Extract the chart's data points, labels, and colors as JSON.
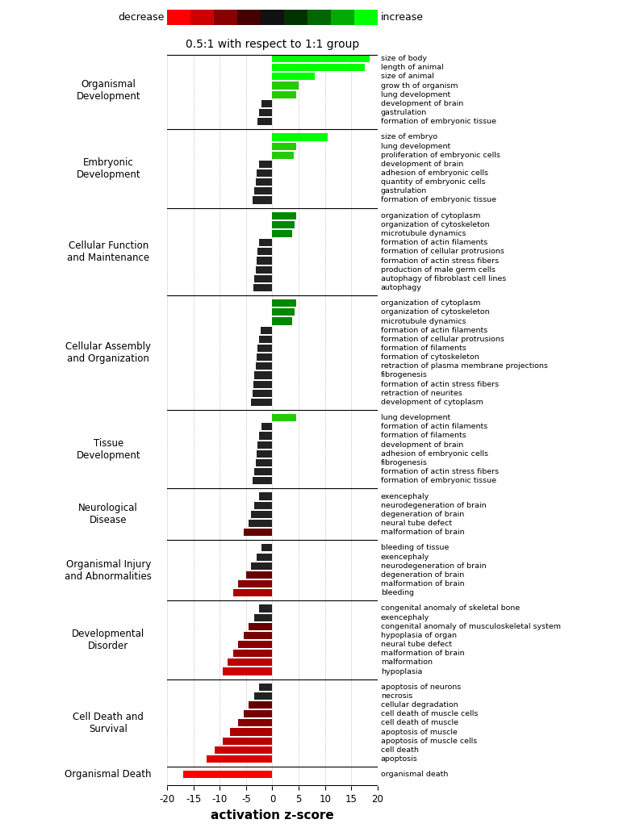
{
  "title": "0.5:1 with respect to 1:1 group",
  "xlabel": "activation z-score",
  "xlim": [
    -20,
    20
  ],
  "xticks": [
    -20,
    -15,
    -10,
    -5,
    0,
    5,
    10,
    15,
    20
  ],
  "groups": [
    {
      "name": "Organismal\nDevelopment",
      "bars": [
        {
          "label": "size of body",
          "value": 18.5,
          "color": "#00ff00"
        },
        {
          "label": "length of animal",
          "value": 17.5,
          "color": "#00ff00"
        },
        {
          "label": "size of animal",
          "value": 8.0,
          "color": "#00ff00"
        },
        {
          "label": "grow th of organism",
          "value": 5.0,
          "color": "#22cc00"
        },
        {
          "label": "lung development",
          "value": 4.5,
          "color": "#22cc00"
        },
        {
          "label": "development of brain",
          "value": -2.0,
          "color": "#222222"
        },
        {
          "label": "gastrulation",
          "value": -2.5,
          "color": "#222222"
        },
        {
          "label": "formation of embryonic tissue",
          "value": -2.8,
          "color": "#222222"
        }
      ]
    },
    {
      "name": "Embryonic\nDevelopment",
      "bars": [
        {
          "label": "size of embryo",
          "value": 10.5,
          "color": "#00ff00"
        },
        {
          "label": "lung development",
          "value": 4.5,
          "color": "#22cc00"
        },
        {
          "label": "proliferation of embryonic cells",
          "value": 4.0,
          "color": "#22cc00"
        },
        {
          "label": "development of brain",
          "value": -2.5,
          "color": "#222222"
        },
        {
          "label": "adhesion of embryonic cells",
          "value": -3.0,
          "color": "#222222"
        },
        {
          "label": "quantity of embryonic cells",
          "value": -3.2,
          "color": "#222222"
        },
        {
          "label": "gastrulation",
          "value": -3.5,
          "color": "#222222"
        },
        {
          "label": "formation of embryonic tissue",
          "value": -3.8,
          "color": "#222222"
        }
      ]
    },
    {
      "name": "Cellular Function\nand Maintenance",
      "bars": [
        {
          "label": "organization of cytoplasm",
          "value": 4.5,
          "color": "#008800"
        },
        {
          "label": "organization of cytoskeleton",
          "value": 4.2,
          "color": "#008800"
        },
        {
          "label": "microtubule dynamics",
          "value": 3.8,
          "color": "#008800"
        },
        {
          "label": "formation of actin filaments",
          "value": -2.5,
          "color": "#222222"
        },
        {
          "label": "formation of cellular protrusions",
          "value": -2.8,
          "color": "#222222"
        },
        {
          "label": "formation of actin stress fibers",
          "value": -3.0,
          "color": "#222222"
        },
        {
          "label": "production of male germ cells",
          "value": -3.2,
          "color": "#222222"
        },
        {
          "label": "autophagy of fibroblast cell lines",
          "value": -3.4,
          "color": "#222222"
        },
        {
          "label": "autophagy",
          "value": -3.6,
          "color": "#222222"
        }
      ]
    },
    {
      "name": "Cellular Assembly\nand Organization",
      "bars": [
        {
          "label": "organization of cytoplasm",
          "value": 4.5,
          "color": "#008800"
        },
        {
          "label": "organization of cytoskeleton",
          "value": 4.2,
          "color": "#008800"
        },
        {
          "label": "microtubule dynamics",
          "value": 3.8,
          "color": "#008800"
        },
        {
          "label": "formation of actin filaments",
          "value": -2.2,
          "color": "#222222"
        },
        {
          "label": "formation of cellular protrusions",
          "value": -2.5,
          "color": "#222222"
        },
        {
          "label": "formation of filaments",
          "value": -2.8,
          "color": "#222222"
        },
        {
          "label": "formation of cytoskeleton",
          "value": -3.0,
          "color": "#222222"
        },
        {
          "label": "retraction of plasma membrane projections",
          "value": -3.2,
          "color": "#222222"
        },
        {
          "label": "fibrogenesis",
          "value": -3.4,
          "color": "#222222"
        },
        {
          "label": "formation of actin stress fibers",
          "value": -3.6,
          "color": "#222222"
        },
        {
          "label": "retraction of neurites",
          "value": -3.8,
          "color": "#222222"
        },
        {
          "label": "development of cytoplasm",
          "value": -4.0,
          "color": "#222222"
        }
      ]
    },
    {
      "name": "Tissue\nDevelopment",
      "bars": [
        {
          "label": "lung development",
          "value": 4.5,
          "color": "#22cc00"
        },
        {
          "label": "formation of actin filaments",
          "value": -2.0,
          "color": "#222222"
        },
        {
          "label": "formation of filaments",
          "value": -2.5,
          "color": "#222222"
        },
        {
          "label": "development of brain",
          "value": -2.8,
          "color": "#222222"
        },
        {
          "label": "adhesion of embryonic cells",
          "value": -3.0,
          "color": "#222222"
        },
        {
          "label": "fibrogenesis",
          "value": -3.2,
          "color": "#222222"
        },
        {
          "label": "formation of actin stress fibers",
          "value": -3.5,
          "color": "#222222"
        },
        {
          "label": "formation of embryonic tissue",
          "value": -3.8,
          "color": "#222222"
        }
      ]
    },
    {
      "name": "Neurological\nDisease",
      "bars": [
        {
          "label": "exencephaly",
          "value": -2.5,
          "color": "#222222"
        },
        {
          "label": "neurodegeneration of brain",
          "value": -3.5,
          "color": "#222222"
        },
        {
          "label": "degeneration of brain",
          "value": -4.0,
          "color": "#222222"
        },
        {
          "label": "neural tube defect",
          "value": -4.5,
          "color": "#222222"
        },
        {
          "label": "malformation of brain",
          "value": -5.5,
          "color": "#660000"
        }
      ]
    },
    {
      "name": "Organismal Injury\nand Abnormalities",
      "bars": [
        {
          "label": "bleeding of tissue",
          "value": -2.0,
          "color": "#222222"
        },
        {
          "label": "exencephaly",
          "value": -3.0,
          "color": "#222222"
        },
        {
          "label": "neurodegeneration of brain",
          "value": -4.0,
          "color": "#222222"
        },
        {
          "label": "degeneration of brain",
          "value": -5.0,
          "color": "#660000"
        },
        {
          "label": "malformation of brain",
          "value": -6.5,
          "color": "#880000"
        },
        {
          "label": "bleeding",
          "value": -7.5,
          "color": "#aa0000"
        }
      ]
    },
    {
      "name": "Developmental\nDisorder",
      "bars": [
        {
          "label": "congenital anomaly of skeletal bone",
          "value": -2.5,
          "color": "#222222"
        },
        {
          "label": "exencephaly",
          "value": -3.5,
          "color": "#222222"
        },
        {
          "label": "congenital anomaly of musculoskeletal system",
          "value": -4.5,
          "color": "#660000"
        },
        {
          "label": "hypoplasia of organ",
          "value": -5.5,
          "color": "#770000"
        },
        {
          "label": "neural tube defect",
          "value": -6.5,
          "color": "#880000"
        },
        {
          "label": "malformation of brain",
          "value": -7.5,
          "color": "#990000"
        },
        {
          "label": "malformation",
          "value": -8.5,
          "color": "#bb0000"
        },
        {
          "label": "hypoplasia",
          "value": -9.5,
          "color": "#cc0000"
        }
      ]
    },
    {
      "name": "Cell Death and\nSurvival",
      "bars": [
        {
          "label": "apoptosis of neurons",
          "value": -2.5,
          "color": "#222222"
        },
        {
          "label": "necrosis",
          "value": -3.5,
          "color": "#222222"
        },
        {
          "label": "cellular degradation",
          "value": -4.5,
          "color": "#660000"
        },
        {
          "label": "cell death of muscle cells",
          "value": -5.5,
          "color": "#770000"
        },
        {
          "label": "cell death of muscle",
          "value": -6.5,
          "color": "#880000"
        },
        {
          "label": "apoptosis of muscle",
          "value": -8.0,
          "color": "#aa0000"
        },
        {
          "label": "apoptosis of muscle cells",
          "value": -9.5,
          "color": "#bb0000"
        },
        {
          "label": "cell death",
          "value": -11.0,
          "color": "#cc0000"
        },
        {
          "label": "apoptosis",
          "value": -12.5,
          "color": "#dd0000"
        }
      ]
    },
    {
      "name": "Organismal Death",
      "bars": [
        {
          "label": "organismal death",
          "value": -17.0,
          "color": "#ff0000"
        }
      ]
    }
  ],
  "legend_colors": [
    "#ff0000",
    "#cc0000",
    "#880000",
    "#440000",
    "#111111",
    "#003300",
    "#006600",
    "#00aa00",
    "#00ff00"
  ],
  "colorbar_label_left": "decrease",
  "colorbar_label_right": "increase"
}
